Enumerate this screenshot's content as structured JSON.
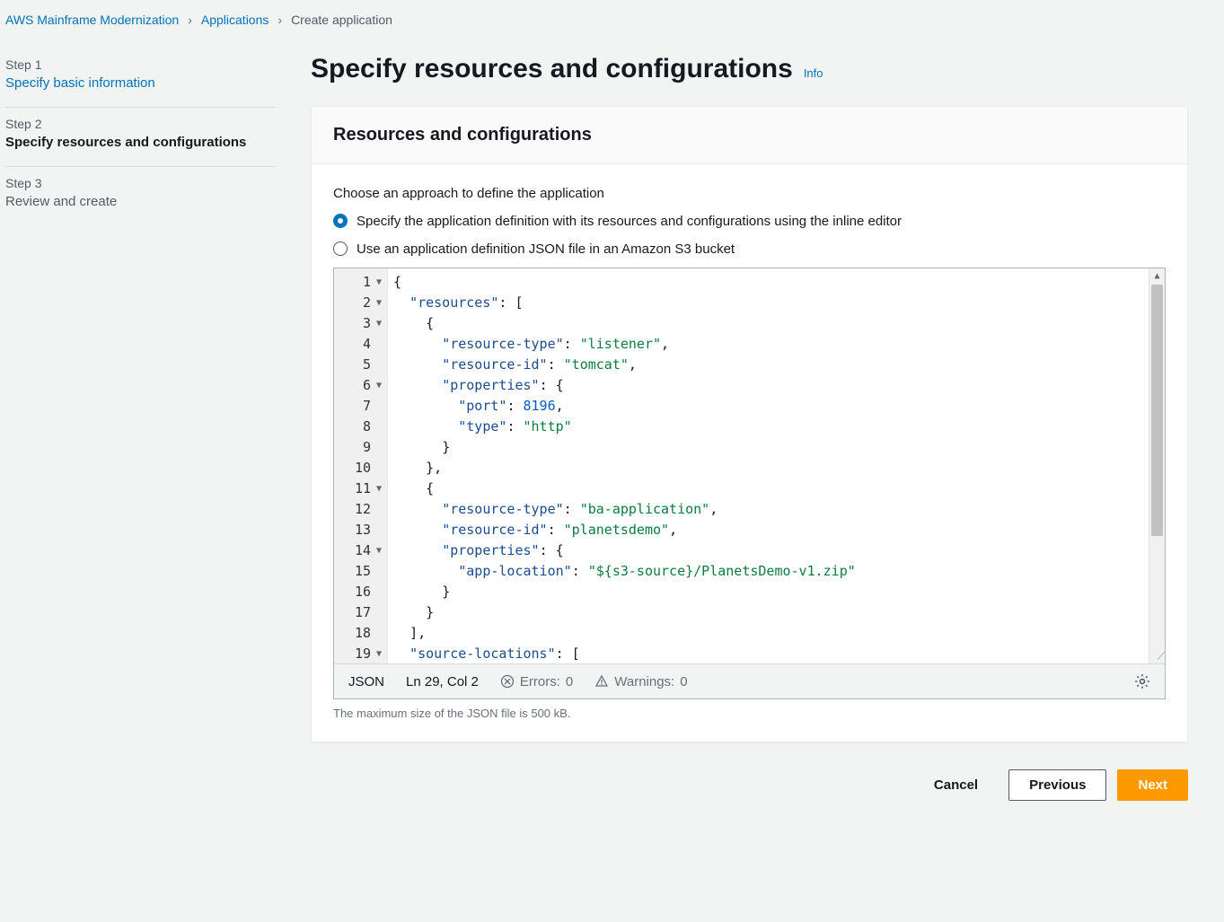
{
  "breadcrumb": {
    "items": [
      "AWS Mainframe Modernization",
      "Applications"
    ],
    "current": "Create application"
  },
  "sidebar": {
    "steps": [
      {
        "num": "Step 1",
        "title": "Specify basic information",
        "state": "link"
      },
      {
        "num": "Step 2",
        "title": "Specify resources and configurations",
        "state": "active"
      },
      {
        "num": "Step 3",
        "title": "Review and create",
        "state": "future"
      }
    ]
  },
  "header": {
    "title": "Specify resources and configurations",
    "info": "Info"
  },
  "card": {
    "title": "Resources and configurations",
    "approach_label": "Choose an approach to define the application",
    "radio1": "Specify the application definition with its resources and configurations using the inline editor",
    "radio2": "Use an application definition JSON file in an Amazon S3 bucket",
    "helper": "The maximum size of the JSON file is 500 kB."
  },
  "editor": {
    "lines": [
      {
        "n": 1,
        "fold": true,
        "indent": 0,
        "tokens": [
          {
            "t": "p",
            "v": "{"
          }
        ]
      },
      {
        "n": 2,
        "fold": true,
        "indent": 1,
        "tokens": [
          {
            "t": "k",
            "v": "\"resources\""
          },
          {
            "t": "p",
            "v": ": ["
          }
        ]
      },
      {
        "n": 3,
        "fold": true,
        "indent": 2,
        "tokens": [
          {
            "t": "p",
            "v": "{"
          }
        ]
      },
      {
        "n": 4,
        "fold": false,
        "indent": 3,
        "tokens": [
          {
            "t": "k",
            "v": "\"resource-type\""
          },
          {
            "t": "p",
            "v": ": "
          },
          {
            "t": "s",
            "v": "\"listener\""
          },
          {
            "t": "p",
            "v": ","
          }
        ]
      },
      {
        "n": 5,
        "fold": false,
        "indent": 3,
        "tokens": [
          {
            "t": "k",
            "v": "\"resource-id\""
          },
          {
            "t": "p",
            "v": ": "
          },
          {
            "t": "s",
            "v": "\"tomcat\""
          },
          {
            "t": "p",
            "v": ","
          }
        ]
      },
      {
        "n": 6,
        "fold": true,
        "indent": 3,
        "tokens": [
          {
            "t": "k",
            "v": "\"properties\""
          },
          {
            "t": "p",
            "v": ": {"
          }
        ]
      },
      {
        "n": 7,
        "fold": false,
        "indent": 4,
        "tokens": [
          {
            "t": "k",
            "v": "\"port\""
          },
          {
            "t": "p",
            "v": ": "
          },
          {
            "t": "n",
            "v": "8196"
          },
          {
            "t": "p",
            "v": ","
          }
        ]
      },
      {
        "n": 8,
        "fold": false,
        "indent": 4,
        "tokens": [
          {
            "t": "k",
            "v": "\"type\""
          },
          {
            "t": "p",
            "v": ": "
          },
          {
            "t": "s",
            "v": "\"http\""
          }
        ]
      },
      {
        "n": 9,
        "fold": false,
        "indent": 3,
        "tokens": [
          {
            "t": "p",
            "v": "}"
          }
        ]
      },
      {
        "n": 10,
        "fold": false,
        "indent": 2,
        "tokens": [
          {
            "t": "p",
            "v": "},"
          }
        ]
      },
      {
        "n": 11,
        "fold": true,
        "indent": 2,
        "tokens": [
          {
            "t": "p",
            "v": "{"
          }
        ]
      },
      {
        "n": 12,
        "fold": false,
        "indent": 3,
        "tokens": [
          {
            "t": "k",
            "v": "\"resource-type\""
          },
          {
            "t": "p",
            "v": ": "
          },
          {
            "t": "s",
            "v": "\"ba-application\""
          },
          {
            "t": "p",
            "v": ","
          }
        ]
      },
      {
        "n": 13,
        "fold": false,
        "indent": 3,
        "tokens": [
          {
            "t": "k",
            "v": "\"resource-id\""
          },
          {
            "t": "p",
            "v": ": "
          },
          {
            "t": "s",
            "v": "\"planetsdemo\""
          },
          {
            "t": "p",
            "v": ","
          }
        ]
      },
      {
        "n": 14,
        "fold": true,
        "indent": 3,
        "tokens": [
          {
            "t": "k",
            "v": "\"properties\""
          },
          {
            "t": "p",
            "v": ": {"
          }
        ]
      },
      {
        "n": 15,
        "fold": false,
        "indent": 4,
        "tokens": [
          {
            "t": "k",
            "v": "\"app-location\""
          },
          {
            "t": "p",
            "v": ": "
          },
          {
            "t": "s",
            "v": "\"${s3-source}/PlanetsDemo-v1.zip\""
          }
        ]
      },
      {
        "n": 16,
        "fold": false,
        "indent": 3,
        "tokens": [
          {
            "t": "p",
            "v": "}"
          }
        ]
      },
      {
        "n": 17,
        "fold": false,
        "indent": 2,
        "tokens": [
          {
            "t": "p",
            "v": "}"
          }
        ]
      },
      {
        "n": 18,
        "fold": false,
        "indent": 1,
        "tokens": [
          {
            "t": "p",
            "v": "],"
          }
        ]
      },
      {
        "n": 19,
        "fold": true,
        "indent": 1,
        "tokens": [
          {
            "t": "k",
            "v": "\"source-locations\""
          },
          {
            "t": "p",
            "v": ": ["
          }
        ]
      }
    ],
    "indent_unit": "  "
  },
  "statusbar": {
    "language": "JSON",
    "position": "Ln 29, Col 2",
    "errors_label": "Errors:",
    "errors_count": "0",
    "warnings_label": "Warnings:",
    "warnings_count": "0"
  },
  "footer": {
    "cancel": "Cancel",
    "previous": "Previous",
    "next": "Next"
  },
  "colors": {
    "link": "#0073bb",
    "primary_btn": "#ff9900",
    "key": "#1a4d8f",
    "string": "#0b7d3e",
    "number": "#005cc5"
  }
}
